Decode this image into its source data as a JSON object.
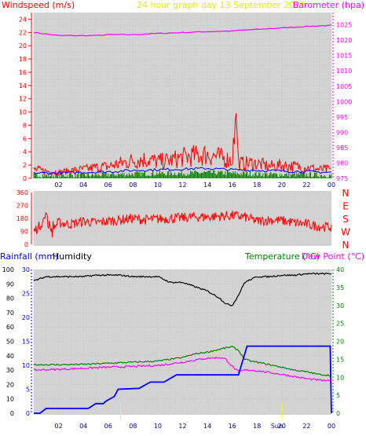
{
  "chart_data": [
    {
      "type": "line",
      "title": "24 hour graph day   13 September 2025",
      "left_axis_label": "Windspeed (m/s)",
      "right_axis_label": "Barometer (hpa)",
      "x_ticks": [
        "02",
        "04",
        "06",
        "08",
        "10",
        "12",
        "14",
        "16",
        "18",
        "20",
        "22",
        "00"
      ],
      "y_left_ticks": [
        "0",
        "2",
        "4",
        "6",
        "8",
        "10",
        "12",
        "14",
        "16",
        "18",
        "20",
        "22",
        "24"
      ],
      "y_right_ticks": [
        "975",
        "980",
        "985",
        "990",
        "995",
        "1000",
        "1005",
        "1010",
        "1015",
        "1020",
        "1025"
      ],
      "ylim_left": [
        0,
        25
      ],
      "ylim_right": [
        975,
        1029
      ],
      "xlim_hours": [
        0,
        24
      ],
      "grid": true,
      "colors": {
        "gust": "#ff0000",
        "wind": "#0000ff",
        "wind_low": "#008000",
        "barometer": "#ff00ff"
      },
      "series": [
        {
          "axis": "right",
          "x": [
            0,
            1,
            2,
            3,
            4,
            5,
            6,
            8,
            10,
            12,
            14,
            16,
            17,
            18,
            20,
            22,
            24
          ],
          "values": [
            1022.5,
            1022,
            1021.5,
            1021.5,
            1021.5,
            1021.5,
            1021.8,
            1021.8,
            1022.2,
            1022.5,
            1022.8,
            1023,
            1023.3,
            1023.5,
            1024,
            1024.5,
            1024.8
          ]
        },
        {
          "axis": "left",
          "x": [
            0,
            1,
            2,
            3,
            4,
            5,
            6,
            7,
            8,
            9,
            10,
            11,
            12,
            13,
            14,
            15,
            16,
            16.3,
            16.5,
            17,
            18,
            19,
            20,
            21,
            22,
            23,
            24
          ],
          "values": [
            1.5,
            1.2,
            1.0,
            1.3,
            1.5,
            1.8,
            2.0,
            2.5,
            3.0,
            3.2,
            2.8,
            3.0,
            3.5,
            3.8,
            4.0,
            3.5,
            3.0,
            10.2,
            2.5,
            2.5,
            2.5,
            2.0,
            2.2,
            2.0,
            1.8,
            1.5,
            1.5
          ]
        },
        {
          "axis": "left",
          "x": [
            0,
            2,
            4,
            6,
            8,
            10,
            12,
            14,
            16,
            18,
            20,
            22,
            24
          ],
          "values": [
            0.8,
            0.8,
            0.9,
            1.0,
            1.2,
            1.3,
            1.4,
            1.5,
            1.3,
            1.2,
            1.1,
            1.0,
            0.9
          ]
        },
        {
          "axis": "left",
          "x": [
            0,
            2,
            4,
            6,
            8,
            10,
            12,
            14,
            16,
            18,
            20,
            22,
            24
          ],
          "values": [
            0.3,
            0.3,
            0.3,
            0.4,
            0.5,
            0.6,
            0.6,
            0.7,
            0.6,
            0.5,
            0.4,
            0.4,
            0.3
          ]
        }
      ]
    },
    {
      "type": "line",
      "y_ticks": [
        "0",
        "90",
        "180",
        "270",
        "360"
      ],
      "right_labels": [
        "N",
        "W",
        "S",
        "E",
        "N"
      ],
      "ylim": [
        0,
        360
      ],
      "xlim_hours": [
        0,
        24
      ],
      "grid": true,
      "colors": {
        "direction": "#ff0000"
      },
      "series": [
        {
          "x": [
            0,
            0.5,
            1,
            1.5,
            2,
            3,
            4,
            5,
            6,
            7,
            8,
            9,
            10,
            11,
            12,
            13,
            14,
            15,
            16,
            17,
            18,
            19,
            20,
            21,
            22,
            23,
            24
          ],
          "values": [
            90,
            130,
            200,
            110,
            150,
            140,
            160,
            150,
            160,
            170,
            180,
            170,
            175,
            180,
            185,
            190,
            190,
            195,
            200,
            190,
            160,
            170,
            165,
            150,
            140,
            125,
            120
          ]
        }
      ]
    },
    {
      "type": "line",
      "left_axis_labels": [
        "Rainfall (mm)",
        "Humidity"
      ],
      "right_axis_labels": [
        "Temperature (°C)",
        "Dew Point (°C)"
      ],
      "x_ticks": [
        "02",
        "04",
        "06",
        "08",
        "10",
        "12",
        "14",
        "16",
        "18",
        "20",
        "22",
        "00"
      ],
      "y_left_ticks": [
        "0",
        "10",
        "20",
        "30",
        "40",
        "50",
        "60",
        "70",
        "80",
        "90",
        "100"
      ],
      "y_mid_ticks": [
        "0",
        "5",
        "10",
        "15",
        "20",
        "25",
        "30"
      ],
      "y_right_ticks": [
        "0",
        "5",
        "10",
        "15",
        "20",
        "25",
        "30",
        "35",
        "40"
      ],
      "ylim_left": [
        0,
        100
      ],
      "ylim_mid": [
        0,
        30
      ],
      "ylim_right": [
        0,
        40
      ],
      "xlim_hours": [
        0,
        24
      ],
      "grid": true,
      "colors": {
        "humidity": "#000000",
        "rainfall": "#0000ff",
        "temperature": "#008000",
        "dew_point": "#ff00ff"
      },
      "markers": [
        {
          "x": 7,
          "label": ""
        },
        {
          "x": 20,
          "label": "Sun"
        }
      ],
      "series": [
        {
          "axis": "left",
          "x": [
            0,
            1,
            2,
            3,
            4,
            5,
            6,
            7,
            8,
            9,
            10,
            11,
            12,
            13,
            14,
            15,
            15.5,
            16,
            16.5,
            17,
            18,
            19,
            20,
            21,
            22,
            23,
            24
          ],
          "values": [
            92,
            95,
            95,
            95,
            95,
            96,
            96,
            96,
            95,
            95,
            95,
            91,
            91,
            88,
            85,
            80,
            76,
            75,
            82,
            91,
            95,
            95,
            96,
            96,
            97,
            97,
            97
          ]
        },
        {
          "axis": "mid",
          "x": [
            0,
            0.5,
            1,
            4.4,
            5,
            5.6,
            5.8,
            6.5,
            6.8,
            8.5,
            9.4,
            10.5,
            11.5,
            13,
            16.5,
            17.2,
            17.5,
            19,
            20.5,
            22,
            23.9,
            24
          ],
          "values": [
            0,
            0,
            1,
            1,
            2,
            2,
            2.5,
            3.5,
            5,
            5.2,
            6.5,
            6.5,
            8,
            8,
            8,
            14,
            14,
            14,
            14,
            14,
            14,
            0
          ]
        },
        {
          "axis": "right",
          "x": [
            0,
            2,
            4,
            6,
            8,
            10,
            12,
            13,
            14,
            15,
            15.5,
            16,
            16.5,
            17,
            17.5,
            18,
            19,
            20,
            21,
            22,
            23,
            24
          ],
          "values": [
            13.5,
            13.5,
            13.6,
            13.9,
            14.2,
            14.5,
            15.5,
            16.5,
            17.0,
            17.8,
            18.2,
            18.5,
            17.5,
            15,
            14.5,
            14.2,
            13.5,
            12.8,
            12.0,
            11.5,
            10.8,
            10.5
          ]
        },
        {
          "axis": "right",
          "x": [
            0,
            2,
            4,
            6,
            8,
            10,
            12,
            13,
            14,
            15,
            15.5,
            16,
            16.5,
            17,
            17.5,
            18,
            19,
            20,
            21,
            22,
            23,
            24
          ],
          "values": [
            12.0,
            12.2,
            12.5,
            12.8,
            13.0,
            13.3,
            14.2,
            14.8,
            15.3,
            15.5,
            15.0,
            13.0,
            11.5,
            12.0,
            12.0,
            11.8,
            11.3,
            10.8,
            10.2,
            9.6,
            9.2,
            8.9
          ]
        }
      ]
    }
  ]
}
